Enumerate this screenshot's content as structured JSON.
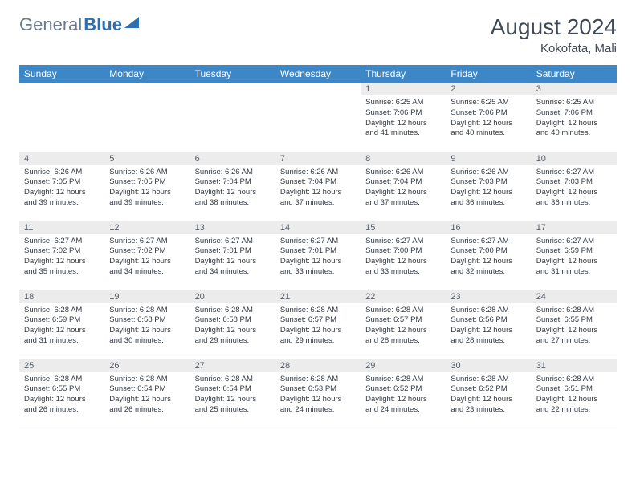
{
  "logo": {
    "part1": "General",
    "part2": "Blue"
  },
  "title": "August 2024",
  "location": "Kokofata, Mali",
  "colors": {
    "header_bg": "#3d87c7",
    "header_text": "#ffffff",
    "daynum_bg": "#ececec",
    "row_border": "#2f6fb0",
    "title_color": "#404854",
    "logo_gray": "#6b7b8c",
    "logo_blue": "#2f6fb0"
  },
  "weekdays": [
    "Sunday",
    "Monday",
    "Tuesday",
    "Wednesday",
    "Thursday",
    "Friday",
    "Saturday"
  ],
  "weeks": [
    [
      {
        "empty": true
      },
      {
        "empty": true
      },
      {
        "empty": true
      },
      {
        "empty": true
      },
      {
        "n": "1",
        "sunrise": "Sunrise: 6:25 AM",
        "sunset": "Sunset: 7:06 PM",
        "daylight": "Daylight: 12 hours and 41 minutes."
      },
      {
        "n": "2",
        "sunrise": "Sunrise: 6:25 AM",
        "sunset": "Sunset: 7:06 PM",
        "daylight": "Daylight: 12 hours and 40 minutes."
      },
      {
        "n": "3",
        "sunrise": "Sunrise: 6:25 AM",
        "sunset": "Sunset: 7:06 PM",
        "daylight": "Daylight: 12 hours and 40 minutes."
      }
    ],
    [
      {
        "n": "4",
        "sunrise": "Sunrise: 6:26 AM",
        "sunset": "Sunset: 7:05 PM",
        "daylight": "Daylight: 12 hours and 39 minutes."
      },
      {
        "n": "5",
        "sunrise": "Sunrise: 6:26 AM",
        "sunset": "Sunset: 7:05 PM",
        "daylight": "Daylight: 12 hours and 39 minutes."
      },
      {
        "n": "6",
        "sunrise": "Sunrise: 6:26 AM",
        "sunset": "Sunset: 7:04 PM",
        "daylight": "Daylight: 12 hours and 38 minutes."
      },
      {
        "n": "7",
        "sunrise": "Sunrise: 6:26 AM",
        "sunset": "Sunset: 7:04 PM",
        "daylight": "Daylight: 12 hours and 37 minutes."
      },
      {
        "n": "8",
        "sunrise": "Sunrise: 6:26 AM",
        "sunset": "Sunset: 7:04 PM",
        "daylight": "Daylight: 12 hours and 37 minutes."
      },
      {
        "n": "9",
        "sunrise": "Sunrise: 6:26 AM",
        "sunset": "Sunset: 7:03 PM",
        "daylight": "Daylight: 12 hours and 36 minutes."
      },
      {
        "n": "10",
        "sunrise": "Sunrise: 6:27 AM",
        "sunset": "Sunset: 7:03 PM",
        "daylight": "Daylight: 12 hours and 36 minutes."
      }
    ],
    [
      {
        "n": "11",
        "sunrise": "Sunrise: 6:27 AM",
        "sunset": "Sunset: 7:02 PM",
        "daylight": "Daylight: 12 hours and 35 minutes."
      },
      {
        "n": "12",
        "sunrise": "Sunrise: 6:27 AM",
        "sunset": "Sunset: 7:02 PM",
        "daylight": "Daylight: 12 hours and 34 minutes."
      },
      {
        "n": "13",
        "sunrise": "Sunrise: 6:27 AM",
        "sunset": "Sunset: 7:01 PM",
        "daylight": "Daylight: 12 hours and 34 minutes."
      },
      {
        "n": "14",
        "sunrise": "Sunrise: 6:27 AM",
        "sunset": "Sunset: 7:01 PM",
        "daylight": "Daylight: 12 hours and 33 minutes."
      },
      {
        "n": "15",
        "sunrise": "Sunrise: 6:27 AM",
        "sunset": "Sunset: 7:00 PM",
        "daylight": "Daylight: 12 hours and 33 minutes."
      },
      {
        "n": "16",
        "sunrise": "Sunrise: 6:27 AM",
        "sunset": "Sunset: 7:00 PM",
        "daylight": "Daylight: 12 hours and 32 minutes."
      },
      {
        "n": "17",
        "sunrise": "Sunrise: 6:27 AM",
        "sunset": "Sunset: 6:59 PM",
        "daylight": "Daylight: 12 hours and 31 minutes."
      }
    ],
    [
      {
        "n": "18",
        "sunrise": "Sunrise: 6:28 AM",
        "sunset": "Sunset: 6:59 PM",
        "daylight": "Daylight: 12 hours and 31 minutes."
      },
      {
        "n": "19",
        "sunrise": "Sunrise: 6:28 AM",
        "sunset": "Sunset: 6:58 PM",
        "daylight": "Daylight: 12 hours and 30 minutes."
      },
      {
        "n": "20",
        "sunrise": "Sunrise: 6:28 AM",
        "sunset": "Sunset: 6:58 PM",
        "daylight": "Daylight: 12 hours and 29 minutes."
      },
      {
        "n": "21",
        "sunrise": "Sunrise: 6:28 AM",
        "sunset": "Sunset: 6:57 PM",
        "daylight": "Daylight: 12 hours and 29 minutes."
      },
      {
        "n": "22",
        "sunrise": "Sunrise: 6:28 AM",
        "sunset": "Sunset: 6:57 PM",
        "daylight": "Daylight: 12 hours and 28 minutes."
      },
      {
        "n": "23",
        "sunrise": "Sunrise: 6:28 AM",
        "sunset": "Sunset: 6:56 PM",
        "daylight": "Daylight: 12 hours and 28 minutes."
      },
      {
        "n": "24",
        "sunrise": "Sunrise: 6:28 AM",
        "sunset": "Sunset: 6:55 PM",
        "daylight": "Daylight: 12 hours and 27 minutes."
      }
    ],
    [
      {
        "n": "25",
        "sunrise": "Sunrise: 6:28 AM",
        "sunset": "Sunset: 6:55 PM",
        "daylight": "Daylight: 12 hours and 26 minutes."
      },
      {
        "n": "26",
        "sunrise": "Sunrise: 6:28 AM",
        "sunset": "Sunset: 6:54 PM",
        "daylight": "Daylight: 12 hours and 26 minutes."
      },
      {
        "n": "27",
        "sunrise": "Sunrise: 6:28 AM",
        "sunset": "Sunset: 6:54 PM",
        "daylight": "Daylight: 12 hours and 25 minutes."
      },
      {
        "n": "28",
        "sunrise": "Sunrise: 6:28 AM",
        "sunset": "Sunset: 6:53 PM",
        "daylight": "Daylight: 12 hours and 24 minutes."
      },
      {
        "n": "29",
        "sunrise": "Sunrise: 6:28 AM",
        "sunset": "Sunset: 6:52 PM",
        "daylight": "Daylight: 12 hours and 24 minutes."
      },
      {
        "n": "30",
        "sunrise": "Sunrise: 6:28 AM",
        "sunset": "Sunset: 6:52 PM",
        "daylight": "Daylight: 12 hours and 23 minutes."
      },
      {
        "n": "31",
        "sunrise": "Sunrise: 6:28 AM",
        "sunset": "Sunset: 6:51 PM",
        "daylight": "Daylight: 12 hours and 22 minutes."
      }
    ]
  ]
}
